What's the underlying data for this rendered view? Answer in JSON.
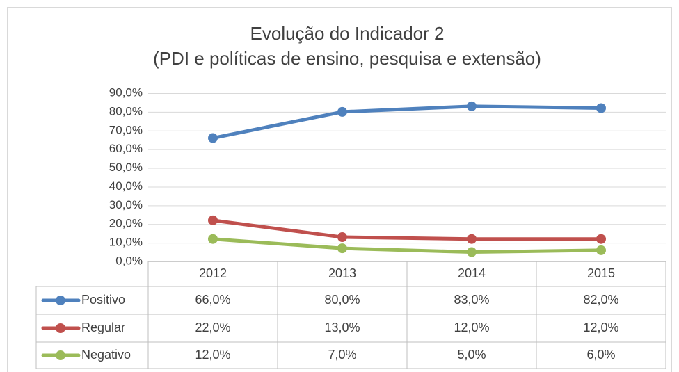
{
  "chart_data": {
    "type": "line",
    "title": "Evolução do Indicador 2",
    "subtitle": "(PDI e políticas de ensino, pesquisa e extensão)",
    "categories": [
      "2012",
      "2013",
      "2014",
      "2015"
    ],
    "series": [
      {
        "name": "Positivo",
        "color": "#4f81bd",
        "values": [
          66,
          80,
          83,
          82
        ],
        "value_labels": [
          "66,0%",
          "80,0%",
          "83,0%",
          "82,0%"
        ]
      },
      {
        "name": "Regular",
        "color": "#c0504d",
        "values": [
          22,
          13,
          12,
          12
        ],
        "value_labels": [
          "22,0%",
          "13,0%",
          "12,0%",
          "12,0%"
        ]
      },
      {
        "name": "Negativo",
        "color": "#9bbb59",
        "values": [
          12,
          7,
          5,
          6
        ],
        "value_labels": [
          "12,0%",
          "7,0%",
          "5,0%",
          "6,0%"
        ]
      }
    ],
    "ylim": [
      0,
      90
    ],
    "yticks": [
      {
        "value": 0,
        "label": "0,0%"
      },
      {
        "value": 10,
        "label": "10,0%"
      },
      {
        "value": 20,
        "label": "20,0%"
      },
      {
        "value": 30,
        "label": "30,0%"
      },
      {
        "value": 40,
        "label": "40,0%"
      },
      {
        "value": 50,
        "label": "50,0%"
      },
      {
        "value": 60,
        "label": "60,0%"
      },
      {
        "value": 70,
        "label": "70,0%"
      },
      {
        "value": 80,
        "label": "80,0%"
      },
      {
        "value": 90,
        "label": "90,0%"
      }
    ],
    "grid": true,
    "data_table": true
  }
}
